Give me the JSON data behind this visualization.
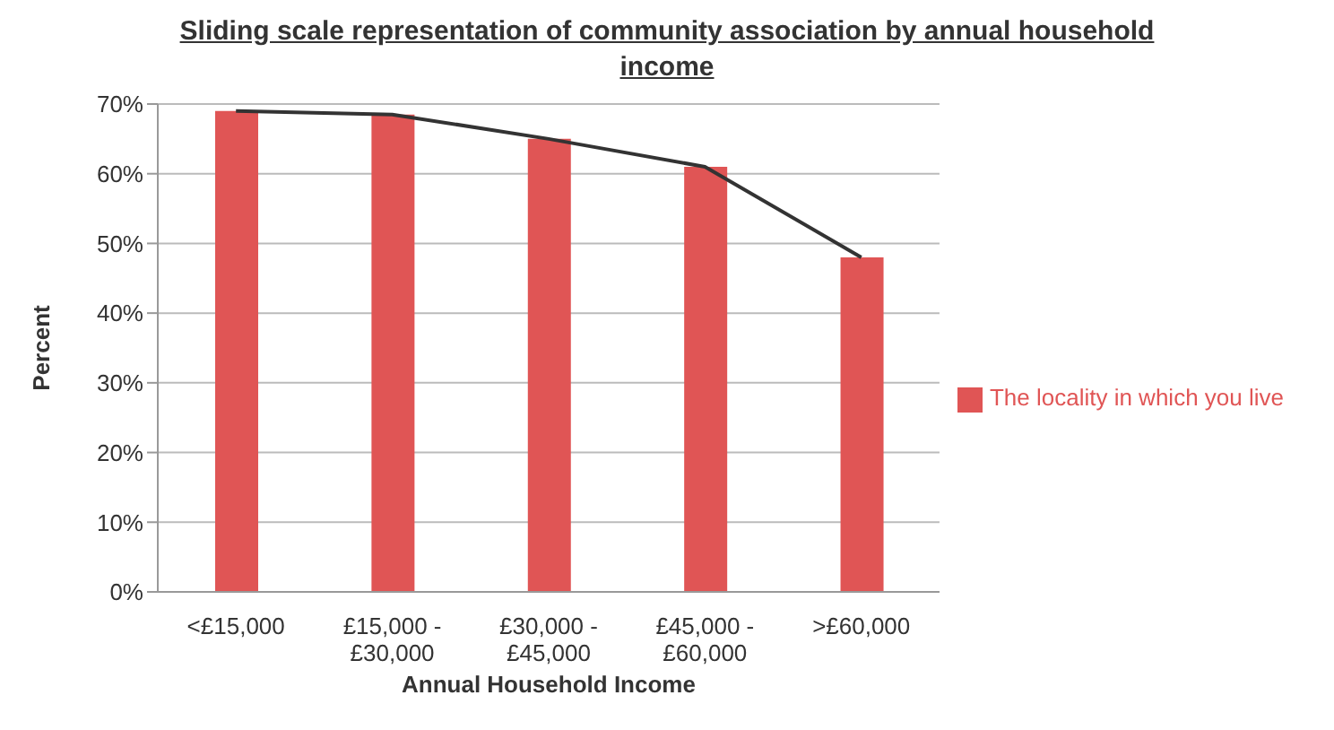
{
  "chart_data": {
    "type": "bar",
    "title": "Sliding scale representation of community association by annual household income",
    "xlabel": "Annual Household Income",
    "ylabel": "Percent",
    "categories": [
      "<£15,000",
      "£15,000 - £30,000",
      "£30,000 - £45,000",
      "£45,000 - £60,000",
      ">£60,000"
    ],
    "series": [
      {
        "name": "The locality in which you live",
        "color": "#e05555",
        "values": [
          69,
          68.5,
          65,
          61,
          48
        ]
      },
      {
        "type": "line",
        "color": "#333333",
        "values": [
          69,
          68.5,
          65,
          61,
          48
        ]
      }
    ],
    "ylim": [
      0,
      70
    ],
    "yticks": [
      {
        "value": 0,
        "label": "0%"
      },
      {
        "value": 10,
        "label": "10%"
      },
      {
        "value": 20,
        "label": "20%"
      },
      {
        "value": 30,
        "label": "30%"
      },
      {
        "value": 40,
        "label": "40%"
      },
      {
        "value": 50,
        "label": "50%"
      },
      {
        "value": 60,
        "label": "60%"
      },
      {
        "value": 70,
        "label": "70%"
      }
    ],
    "grid": "y",
    "legend": "right",
    "marker": "none"
  }
}
